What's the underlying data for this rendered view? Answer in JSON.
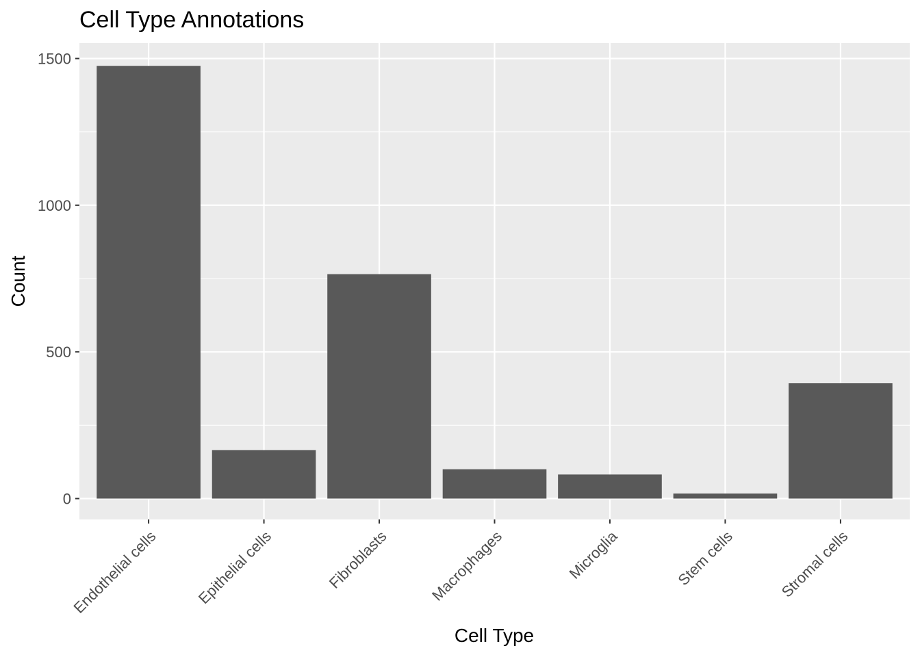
{
  "chart_data": {
    "type": "bar",
    "title": "Cell Type Annotations",
    "xlabel": "Cell Type",
    "ylabel": "Count",
    "categories": [
      "Endothelial cells",
      "Epithelial cells",
      "Fibroblasts",
      "Macrophages",
      "Microglia",
      "Stem cells",
      "Stromal cells"
    ],
    "values": [
      1475,
      165,
      765,
      100,
      82,
      17,
      393
    ],
    "ylim": [
      -75,
      1550
    ],
    "yticks": [
      0,
      500,
      1000,
      1500
    ],
    "ytick_labels": [
      "0",
      "500",
      "1000",
      "1500"
    ],
    "grid": true,
    "legend": "none",
    "colors": {
      "bar": "#595959",
      "panel_background": "#ebebeb",
      "grid": "#ffffff",
      "tick_text": "#4d4d4d",
      "tick_mark": "#333333"
    }
  }
}
